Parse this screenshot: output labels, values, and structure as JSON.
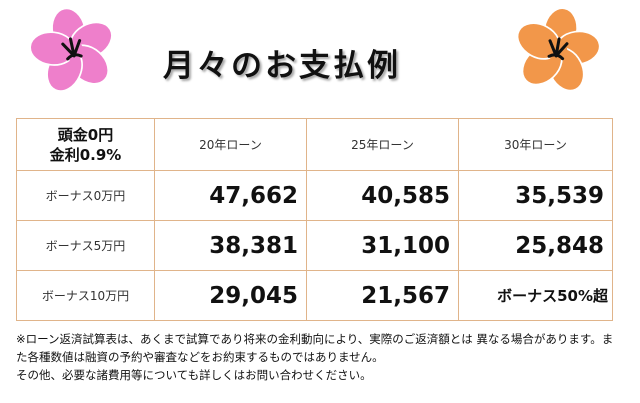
{
  "title": "月々のお支払例",
  "table": {
    "corner_line1": "頭金0円",
    "corner_line2": "金利0.9%",
    "columns": [
      "20年ローン",
      "25年ローン",
      "30年ローン"
    ],
    "rows": [
      {
        "label": "ボーナス0万円",
        "values": [
          "47,662",
          "40,585",
          "35,539"
        ]
      },
      {
        "label": "ボーナス5万円",
        "values": [
          "38,381",
          "31,100",
          "25,848"
        ]
      },
      {
        "label": "ボーナス10万円",
        "values": [
          "29,045",
          "21,567",
          "ボーナス50%超"
        ]
      }
    ]
  },
  "footnote": {
    "line1": "※ローン返済試算表は、あくまで試算であり将来の金利動向により、実際のご返済額とは 異なる場合があります。また各種数値は融資の予約や審査などをお約束するものではありません。",
    "line2": "その他、必要な諸費用等についても詳しくはお問い合わせください。"
  },
  "colors": {
    "flower_left": "#ee7fcb",
    "flower_right": "#f2974a",
    "table_border": "#e0b48a"
  },
  "icons": [
    "flower-icon-pink",
    "flower-icon-orange"
  ]
}
